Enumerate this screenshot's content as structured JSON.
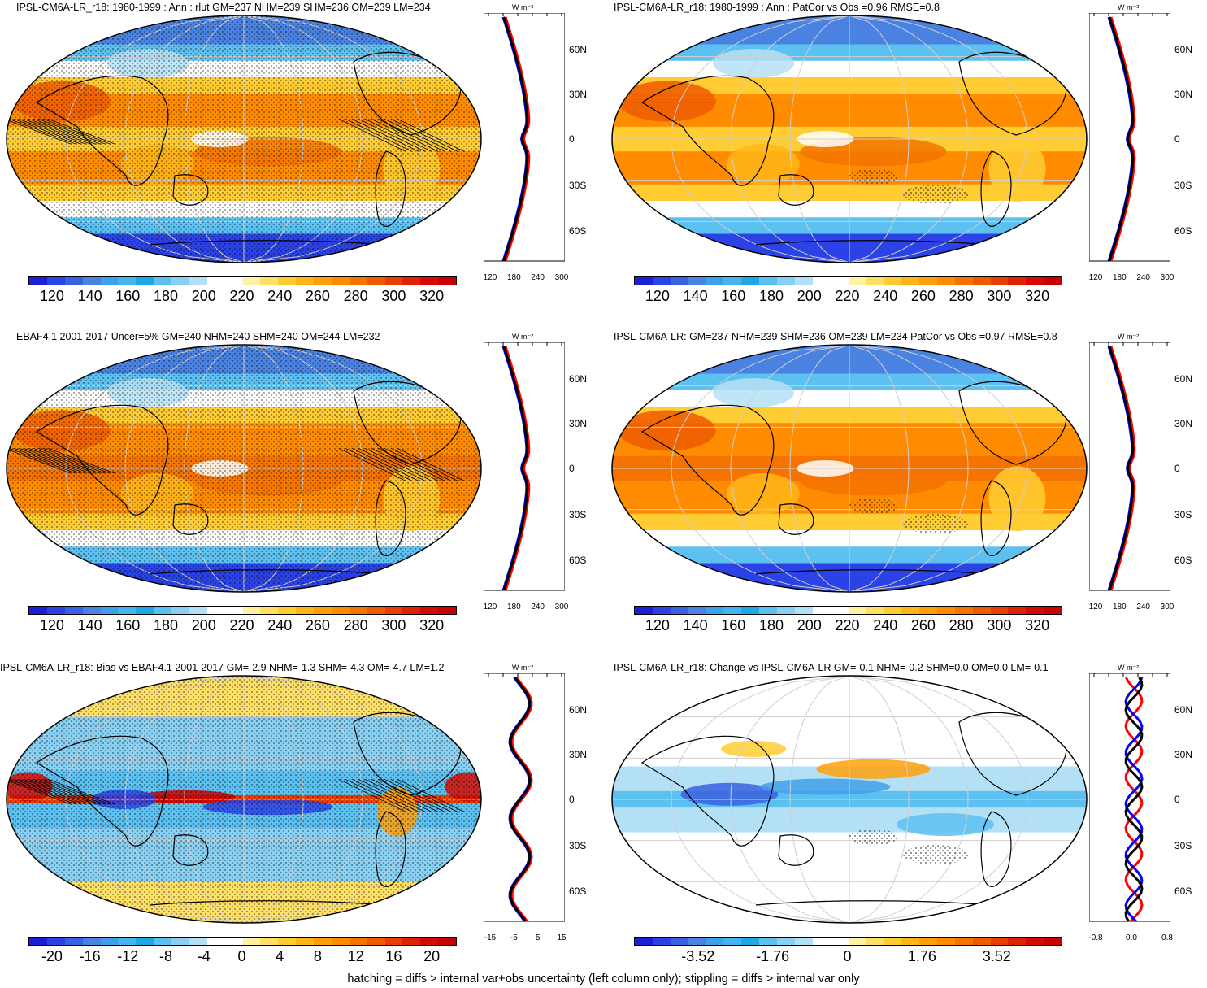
{
  "panels": [
    {
      "id": "p1",
      "title": "IPSL-CM6A-LR_r18: 1980-1999 : Ann : rlut GM=237 NHM=239 SHM=236 OM=239 LM=234",
      "cbar_labels": [
        "120",
        "140",
        "160",
        "180",
        "200",
        "220",
        "240",
        "260",
        "280",
        "300",
        "320"
      ],
      "zonal_x_labels": [
        "120",
        "180",
        "240",
        "300"
      ],
      "zonal_unit": "W m⁻²",
      "lat_labels": [
        "60N",
        "30N",
        "0",
        "30S",
        "60S"
      ],
      "kind": "abs",
      "stipple": "heavy",
      "hatch": true
    },
    {
      "id": "p2",
      "title": "IPSL-CM6A-LR_r18: 1980-1999 : Ann : PatCor vs Obs =0.96 RMSE=0.8",
      "cbar_labels": [
        "120",
        "140",
        "160",
        "180",
        "200",
        "220",
        "240",
        "260",
        "280",
        "300",
        "320"
      ],
      "zonal_x_labels": [
        "120",
        "180",
        "240",
        "300"
      ],
      "zonal_unit": "W m⁻²",
      "lat_labels": [
        "60N",
        "30N",
        "0",
        "30S",
        "60S"
      ],
      "kind": "abs",
      "stipple": "light",
      "hatch": false
    },
    {
      "id": "p3",
      "title": "EBAF4.1 2001-2017 Uncer=5% GM=240 NHM=240 SHM=240 OM=244 LM=232",
      "cbar_labels": [
        "120",
        "140",
        "160",
        "180",
        "200",
        "220",
        "240",
        "260",
        "280",
        "300",
        "320"
      ],
      "zonal_x_labels": [
        "120",
        "180",
        "240",
        "300"
      ],
      "zonal_unit": "W m⁻²",
      "lat_labels": [
        "60N",
        "30N",
        "0",
        "30S",
        "60S"
      ],
      "kind": "abs",
      "stipple": "heavy",
      "hatch": true
    },
    {
      "id": "p4",
      "title": "IPSL-CM6A-LR: GM=237 NHM=239 SHM=236 OM=239 LM=234 PatCor vs Obs =0.97 RMSE=0.8",
      "cbar_labels": [
        "120",
        "140",
        "160",
        "180",
        "200",
        "220",
        "240",
        "260",
        "280",
        "300",
        "320"
      ],
      "zonal_x_labels": [
        "120",
        "180",
        "240",
        "300"
      ],
      "zonal_unit": "W m⁻²",
      "lat_labels": [
        "60N",
        "30N",
        "0",
        "30S",
        "60S"
      ],
      "kind": "abs",
      "stipple": "light",
      "hatch": false
    },
    {
      "id": "p5",
      "title": "IPSL-CM6A-LR_r18: Bias vs EBAF4.1 2001-2017 GM=-2.9 NHM=-1.3 SHM=-4.3 OM=-4.7 LM=1.2",
      "cbar_labels": [
        "-20",
        "-16",
        "-12",
        "-8",
        "-4",
        "0",
        "4",
        "8",
        "12",
        "16",
        "20"
      ],
      "zonal_x_labels": [
        "-15",
        "-5",
        "5",
        "15"
      ],
      "zonal_unit": "W m⁻²",
      "lat_labels": [
        "60N",
        "30N",
        "0",
        "30S",
        "60S"
      ],
      "kind": "bias",
      "stipple": "heavy",
      "hatch": true
    },
    {
      "id": "p6",
      "title": "IPSL-CM6A-LR_r18: Change vs IPSL-CM6A-LR GM=-0.1 NHM=-0.2 SHM=0.0 OM=0.0 LM=-0.1",
      "cbar_labels": [
        "-3.52",
        "-1.76",
        "0",
        "1.76",
        "3.52"
      ],
      "zonal_x_labels": [
        "-0.8",
        "0.0",
        "0.8"
      ],
      "zonal_unit": "W m⁻²",
      "lat_labels": [
        "60N",
        "30N",
        "0",
        "30S",
        "60S"
      ],
      "kind": "change",
      "stipple": "light",
      "hatch": false
    }
  ],
  "colormap": [
    "#1e1ed6",
    "#2b42e6",
    "#3a62e0",
    "#4a82e2",
    "#3fa0ea",
    "#44b4ec",
    "#1ea8e6",
    "#5cc0f0",
    "#8ad0f2",
    "#b4e0f6",
    "#ffffff",
    "#ffffff",
    "#fff2a0",
    "#ffe066",
    "#ffcc33",
    "#ffb619",
    "#ffa00a",
    "#ff8c00",
    "#f57300",
    "#ef5a00",
    "#e83e00",
    "#e02200",
    "#d80a00",
    "#c80000"
  ],
  "line_colors": {
    "model": "#000000",
    "obs": "#ff0000",
    "other": "#0000ff"
  },
  "footnote": "hatching = diffs > internal var+obs uncertainty (left column only); stippling = diffs > internal var only"
}
